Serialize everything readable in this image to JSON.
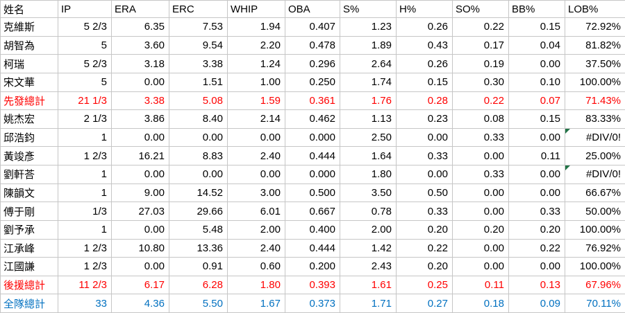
{
  "colors": {
    "background": "#ffffff",
    "grid_line": "#c6c6c6",
    "text_default": "#000000",
    "total_starter_relief": "#ff0000",
    "total_team": "#0070c0",
    "error_flag": "#217346"
  },
  "table": {
    "column_keys": [
      "name",
      "ip",
      "era",
      "erc",
      "whip",
      "oba",
      "s-pct",
      "h-pct",
      "so-pct",
      "bb-pct",
      "lob-pct"
    ],
    "headers": [
      "姓名",
      "IP",
      "ERA",
      "ERC",
      "WHIP",
      "OBA",
      "S%",
      "H%",
      "SO%",
      "BB%",
      "LOB%"
    ],
    "rows": [
      {
        "variant": "normal",
        "name": "克維斯",
        "values": [
          "5 2/3",
          "6.35",
          "7.53",
          "1.94",
          "0.407",
          "1.23",
          "0.26",
          "0.22",
          "0.15",
          "72.92%"
        ]
      },
      {
        "variant": "normal",
        "name": "胡智為",
        "values": [
          "5",
          "3.60",
          "9.54",
          "2.20",
          "0.478",
          "1.89",
          "0.43",
          "0.17",
          "0.04",
          "81.82%"
        ]
      },
      {
        "variant": "normal",
        "name": "柯瑞",
        "values": [
          "5 2/3",
          "3.18",
          "3.38",
          "1.24",
          "0.296",
          "2.64",
          "0.26",
          "0.19",
          "0.00",
          "37.50%"
        ]
      },
      {
        "variant": "normal",
        "name": "宋文華",
        "values": [
          "5",
          "0.00",
          "1.51",
          "1.00",
          "0.250",
          "1.74",
          "0.15",
          "0.30",
          "0.10",
          "100.00%"
        ]
      },
      {
        "variant": "starter-total",
        "name": "先發總計",
        "values": [
          "21 1/3",
          "3.38",
          "5.08",
          "1.59",
          "0.361",
          "1.76",
          "0.28",
          "0.22",
          "0.07",
          "71.43%"
        ]
      },
      {
        "variant": "normal",
        "name": "姚杰宏",
        "values": [
          "2 1/3",
          "3.86",
          "8.40",
          "2.14",
          "0.462",
          "1.13",
          "0.23",
          "0.08",
          "0.15",
          "83.33%"
        ]
      },
      {
        "variant": "normal",
        "name": "邱浩鈞",
        "values": [
          "1",
          "0.00",
          "0.00",
          "0.00",
          "0.000",
          "2.50",
          "0.00",
          "0.33",
          "0.00",
          "#DIV/0!"
        ],
        "error_cols": [
          9
        ]
      },
      {
        "variant": "normal",
        "name": "黃竣彥",
        "values": [
          "1 2/3",
          "16.21",
          "8.83",
          "2.40",
          "0.444",
          "1.64",
          "0.33",
          "0.00",
          "0.11",
          "25.00%"
        ]
      },
      {
        "variant": "normal",
        "name": "劉軒荅",
        "values": [
          "1",
          "0.00",
          "0.00",
          "0.00",
          "0.000",
          "1.80",
          "0.00",
          "0.33",
          "0.00",
          "#DIV/0!"
        ],
        "error_cols": [
          9
        ]
      },
      {
        "variant": "normal",
        "name": "陳韻文",
        "values": [
          "1",
          "9.00",
          "14.52",
          "3.00",
          "0.500",
          "3.50",
          "0.50",
          "0.00",
          "0.00",
          "66.67%"
        ]
      },
      {
        "variant": "normal",
        "name": "傅于剛",
        "values": [
          "1/3",
          "27.03",
          "29.66",
          "6.01",
          "0.667",
          "0.78",
          "0.33",
          "0.00",
          "0.33",
          "50.00%"
        ]
      },
      {
        "variant": "normal",
        "name": "劉予承",
        "values": [
          "1",
          "0.00",
          "5.48",
          "2.00",
          "0.400",
          "2.00",
          "0.20",
          "0.20",
          "0.20",
          "100.00%"
        ]
      },
      {
        "variant": "normal",
        "name": "江承峰",
        "values": [
          "1 2/3",
          "10.80",
          "13.36",
          "2.40",
          "0.444",
          "1.42",
          "0.22",
          "0.00",
          "0.22",
          "76.92%"
        ]
      },
      {
        "variant": "normal",
        "name": "江國謙",
        "values": [
          "1 2/3",
          "0.00",
          "0.91",
          "0.60",
          "0.200",
          "2.43",
          "0.20",
          "0.00",
          "0.00",
          "100.00%"
        ]
      },
      {
        "variant": "relief-total",
        "name": "後援總計",
        "values": [
          "11 2/3",
          "6.17",
          "6.28",
          "1.80",
          "0.393",
          "1.61",
          "0.25",
          "0.11",
          "0.13",
          "67.96%"
        ]
      },
      {
        "variant": "team-total",
        "name": "全隊總計",
        "values": [
          "33",
          "4.36",
          "5.50",
          "1.67",
          "0.373",
          "1.71",
          "0.27",
          "0.18",
          "0.09",
          "70.11%"
        ]
      }
    ]
  }
}
